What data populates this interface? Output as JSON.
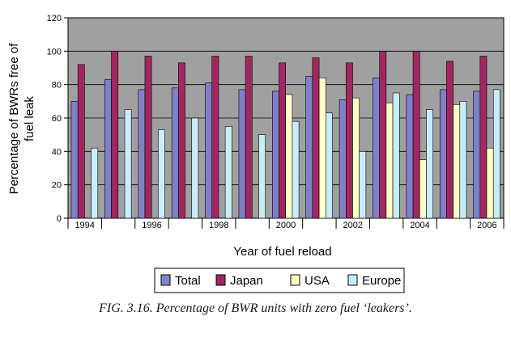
{
  "chart_data": {
    "type": "bar",
    "categories": [
      "1994",
      "1995",
      "1996",
      "1997",
      "1998",
      "1999",
      "2000",
      "2001",
      "2002",
      "2003",
      "2004",
      "2005",
      "2006"
    ],
    "x_tick_labels": [
      "1994",
      "",
      "1996",
      "",
      "1998",
      "",
      "2000",
      "",
      "2002",
      "",
      "2004",
      "",
      "2006"
    ],
    "series": [
      {
        "name": "Total",
        "color": "#8080c8",
        "values": [
          70,
          83,
          77,
          78,
          81,
          77,
          76,
          85,
          71,
          84,
          74,
          77,
          76
        ]
      },
      {
        "name": "Japan",
        "color": "#a02860",
        "values": [
          92,
          100,
          97,
          93,
          97,
          97,
          93,
          96,
          93,
          100,
          100,
          94,
          97
        ]
      },
      {
        "name": "USA",
        "color": "#ffffc8",
        "values": [
          null,
          null,
          null,
          null,
          null,
          null,
          74,
          84,
          72,
          69,
          35,
          68,
          42
        ]
      },
      {
        "name": "Europe",
        "color": "#c8ecf8",
        "values": [
          42,
          65,
          53,
          60,
          55,
          50,
          58,
          63,
          40,
          75,
          65,
          70,
          77
        ]
      }
    ],
    "xlabel": "Year of fuel reload",
    "ylabel": "Percentage of BWRs free of fuel leak",
    "ylabel_lines": [
      "Percentage of BWRs free of",
      "fuel leak"
    ],
    "ylim": [
      0,
      120
    ],
    "yticks": [
      0,
      20,
      40,
      60,
      80,
      100,
      120
    ],
    "plot_background": "#a0a0a0",
    "grid": true,
    "legend_position": "bottom"
  },
  "caption": "FIG. 3.16.  Percentage of BWR units with zero fuel ‘leakers’."
}
